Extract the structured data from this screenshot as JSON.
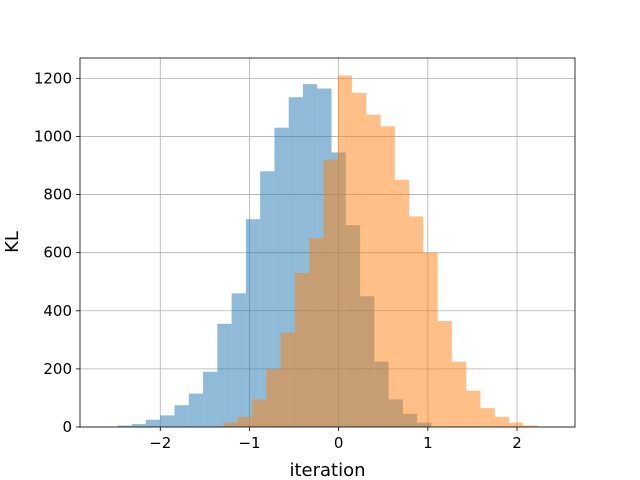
{
  "chart_data": {
    "type": "bar",
    "subtype": "overlapping-histogram",
    "title": "",
    "xlabel": "iteration",
    "ylabel": "KL",
    "xlim": [
      -2.9,
      2.65
    ],
    "ylim": [
      0,
      1270
    ],
    "grid": true,
    "legend": "none",
    "x_ticks": [
      {
        "value": -2,
        "label": "−2"
      },
      {
        "value": -1,
        "label": "−1"
      },
      {
        "value": 0,
        "label": "0"
      },
      {
        "value": 1,
        "label": "1"
      },
      {
        "value": 2,
        "label": "2"
      }
    ],
    "y_ticks": [
      {
        "value": 0,
        "label": "0"
      },
      {
        "value": 200,
        "label": "200"
      },
      {
        "value": 400,
        "label": "400"
      },
      {
        "value": 600,
        "label": "600"
      },
      {
        "value": 800,
        "label": "800"
      },
      {
        "value": 1000,
        "label": "1000"
      },
      {
        "value": 1200,
        "label": "1200"
      }
    ],
    "series": [
      {
        "color": "#1f77b4",
        "alpha": 0.5,
        "bin_edges": [
          -2.48,
          -2.32,
          -2.16,
          -2.0,
          -1.84,
          -1.68,
          -1.52,
          -1.36,
          -1.2,
          -1.04,
          -0.88,
          -0.72,
          -0.56,
          -0.4,
          -0.24,
          -0.08,
          0.08,
          0.24,
          0.4,
          0.56,
          0.72,
          0.88,
          1.04
        ],
        "values": [
          5,
          10,
          25,
          40,
          75,
          115,
          190,
          355,
          460,
          715,
          880,
          1030,
          1135,
          1180,
          1165,
          945,
          695,
          450,
          225,
          95,
          45,
          15
        ]
      },
      {
        "color": "#ff7f0e",
        "alpha": 0.5,
        "bin_edges": [
          -1.29,
          -1.13,
          -0.97,
          -0.81,
          -0.65,
          -0.49,
          -0.33,
          -0.17,
          -0.01,
          0.15,
          0.31,
          0.47,
          0.63,
          0.79,
          0.95,
          1.11,
          1.27,
          1.43,
          1.59,
          1.75,
          1.91,
          2.07,
          2.23
        ],
        "values": [
          15,
          35,
          95,
          200,
          325,
          530,
          650,
          920,
          1210,
          1150,
          1075,
          1035,
          850,
          725,
          600,
          365,
          225,
          125,
          65,
          35,
          15,
          5
        ]
      }
    ]
  }
}
